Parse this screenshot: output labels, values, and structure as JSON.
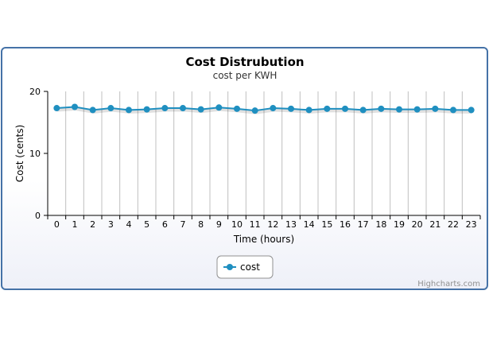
{
  "chart_data": {
    "type": "line",
    "title": "Cost Distrubution",
    "subtitle": "cost per KWH",
    "xlabel": "Time (hours)",
    "ylabel": "Cost (cents)",
    "categories": [
      "0",
      "1",
      "2",
      "3",
      "4",
      "5",
      "6",
      "7",
      "8",
      "9",
      "10",
      "11",
      "12",
      "13",
      "14",
      "15",
      "16",
      "17",
      "18",
      "19",
      "20",
      "21",
      "22",
      "23"
    ],
    "ylim": [
      0,
      20
    ],
    "yticks": [
      "0",
      "10",
      "20"
    ],
    "series": [
      {
        "name": "cost",
        "color": "#1f8fc0",
        "values": [
          17.3,
          17.5,
          17.0,
          17.3,
          17.0,
          17.1,
          17.3,
          17.3,
          17.1,
          17.4,
          17.2,
          16.9,
          17.3,
          17.2,
          17.0,
          17.2,
          17.2,
          17.0,
          17.2,
          17.1,
          17.1,
          17.2,
          17.0,
          17.0
        ]
      }
    ],
    "grid": "vertical",
    "legend": "bottom-center",
    "credit": "Highcharts.com"
  }
}
